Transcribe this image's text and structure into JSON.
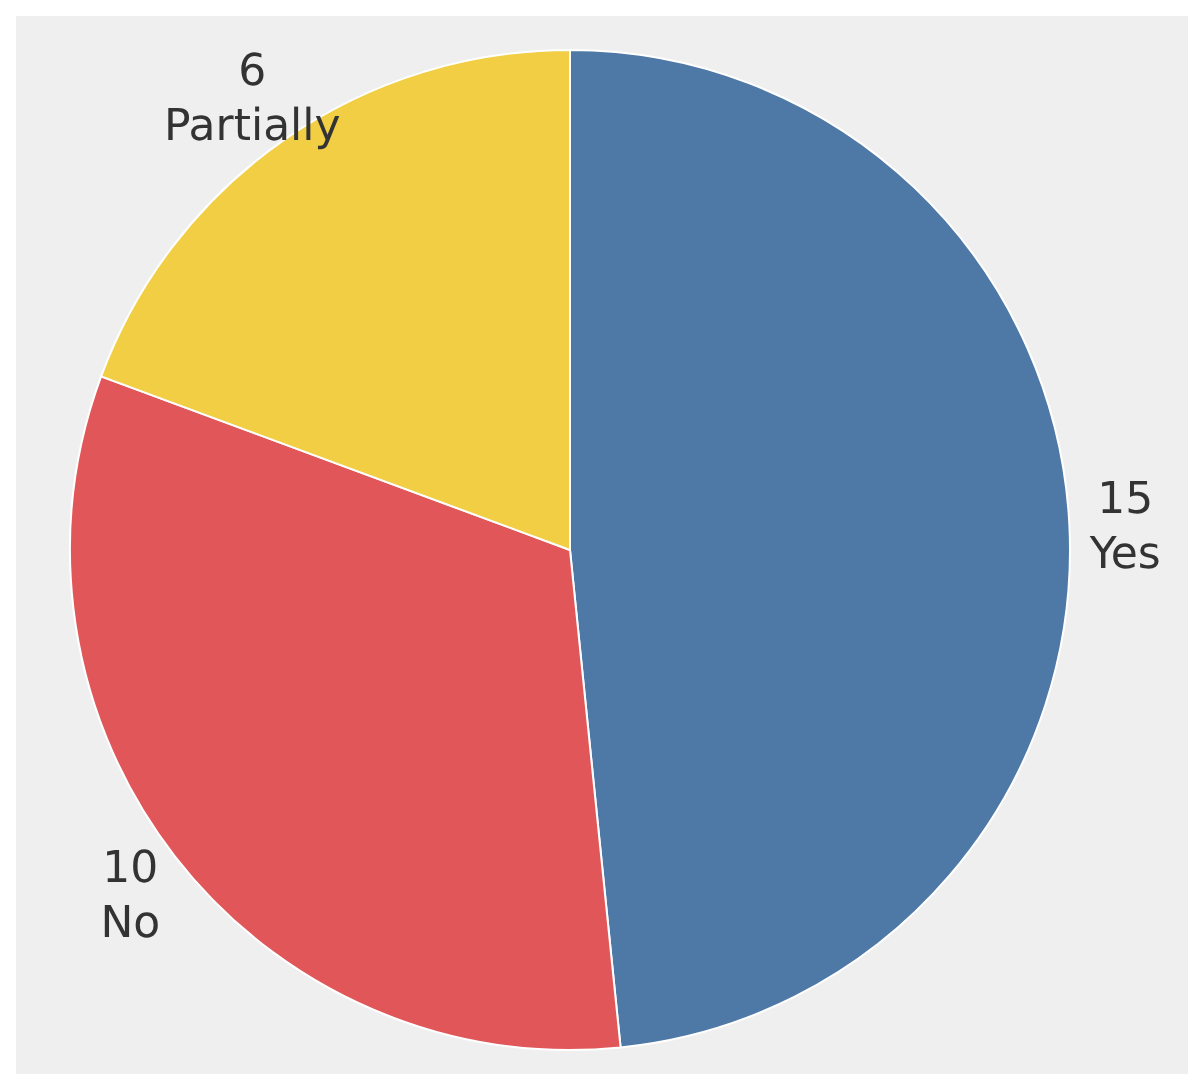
{
  "chart_data": {
    "type": "pie",
    "categories": [
      "Yes",
      "No",
      "Partially"
    ],
    "values": [
      15,
      10,
      6
    ],
    "colors": [
      "#4e79a7",
      "#e15759",
      "#f1ce44"
    ],
    "data_labels": true,
    "legend": false
  }
}
